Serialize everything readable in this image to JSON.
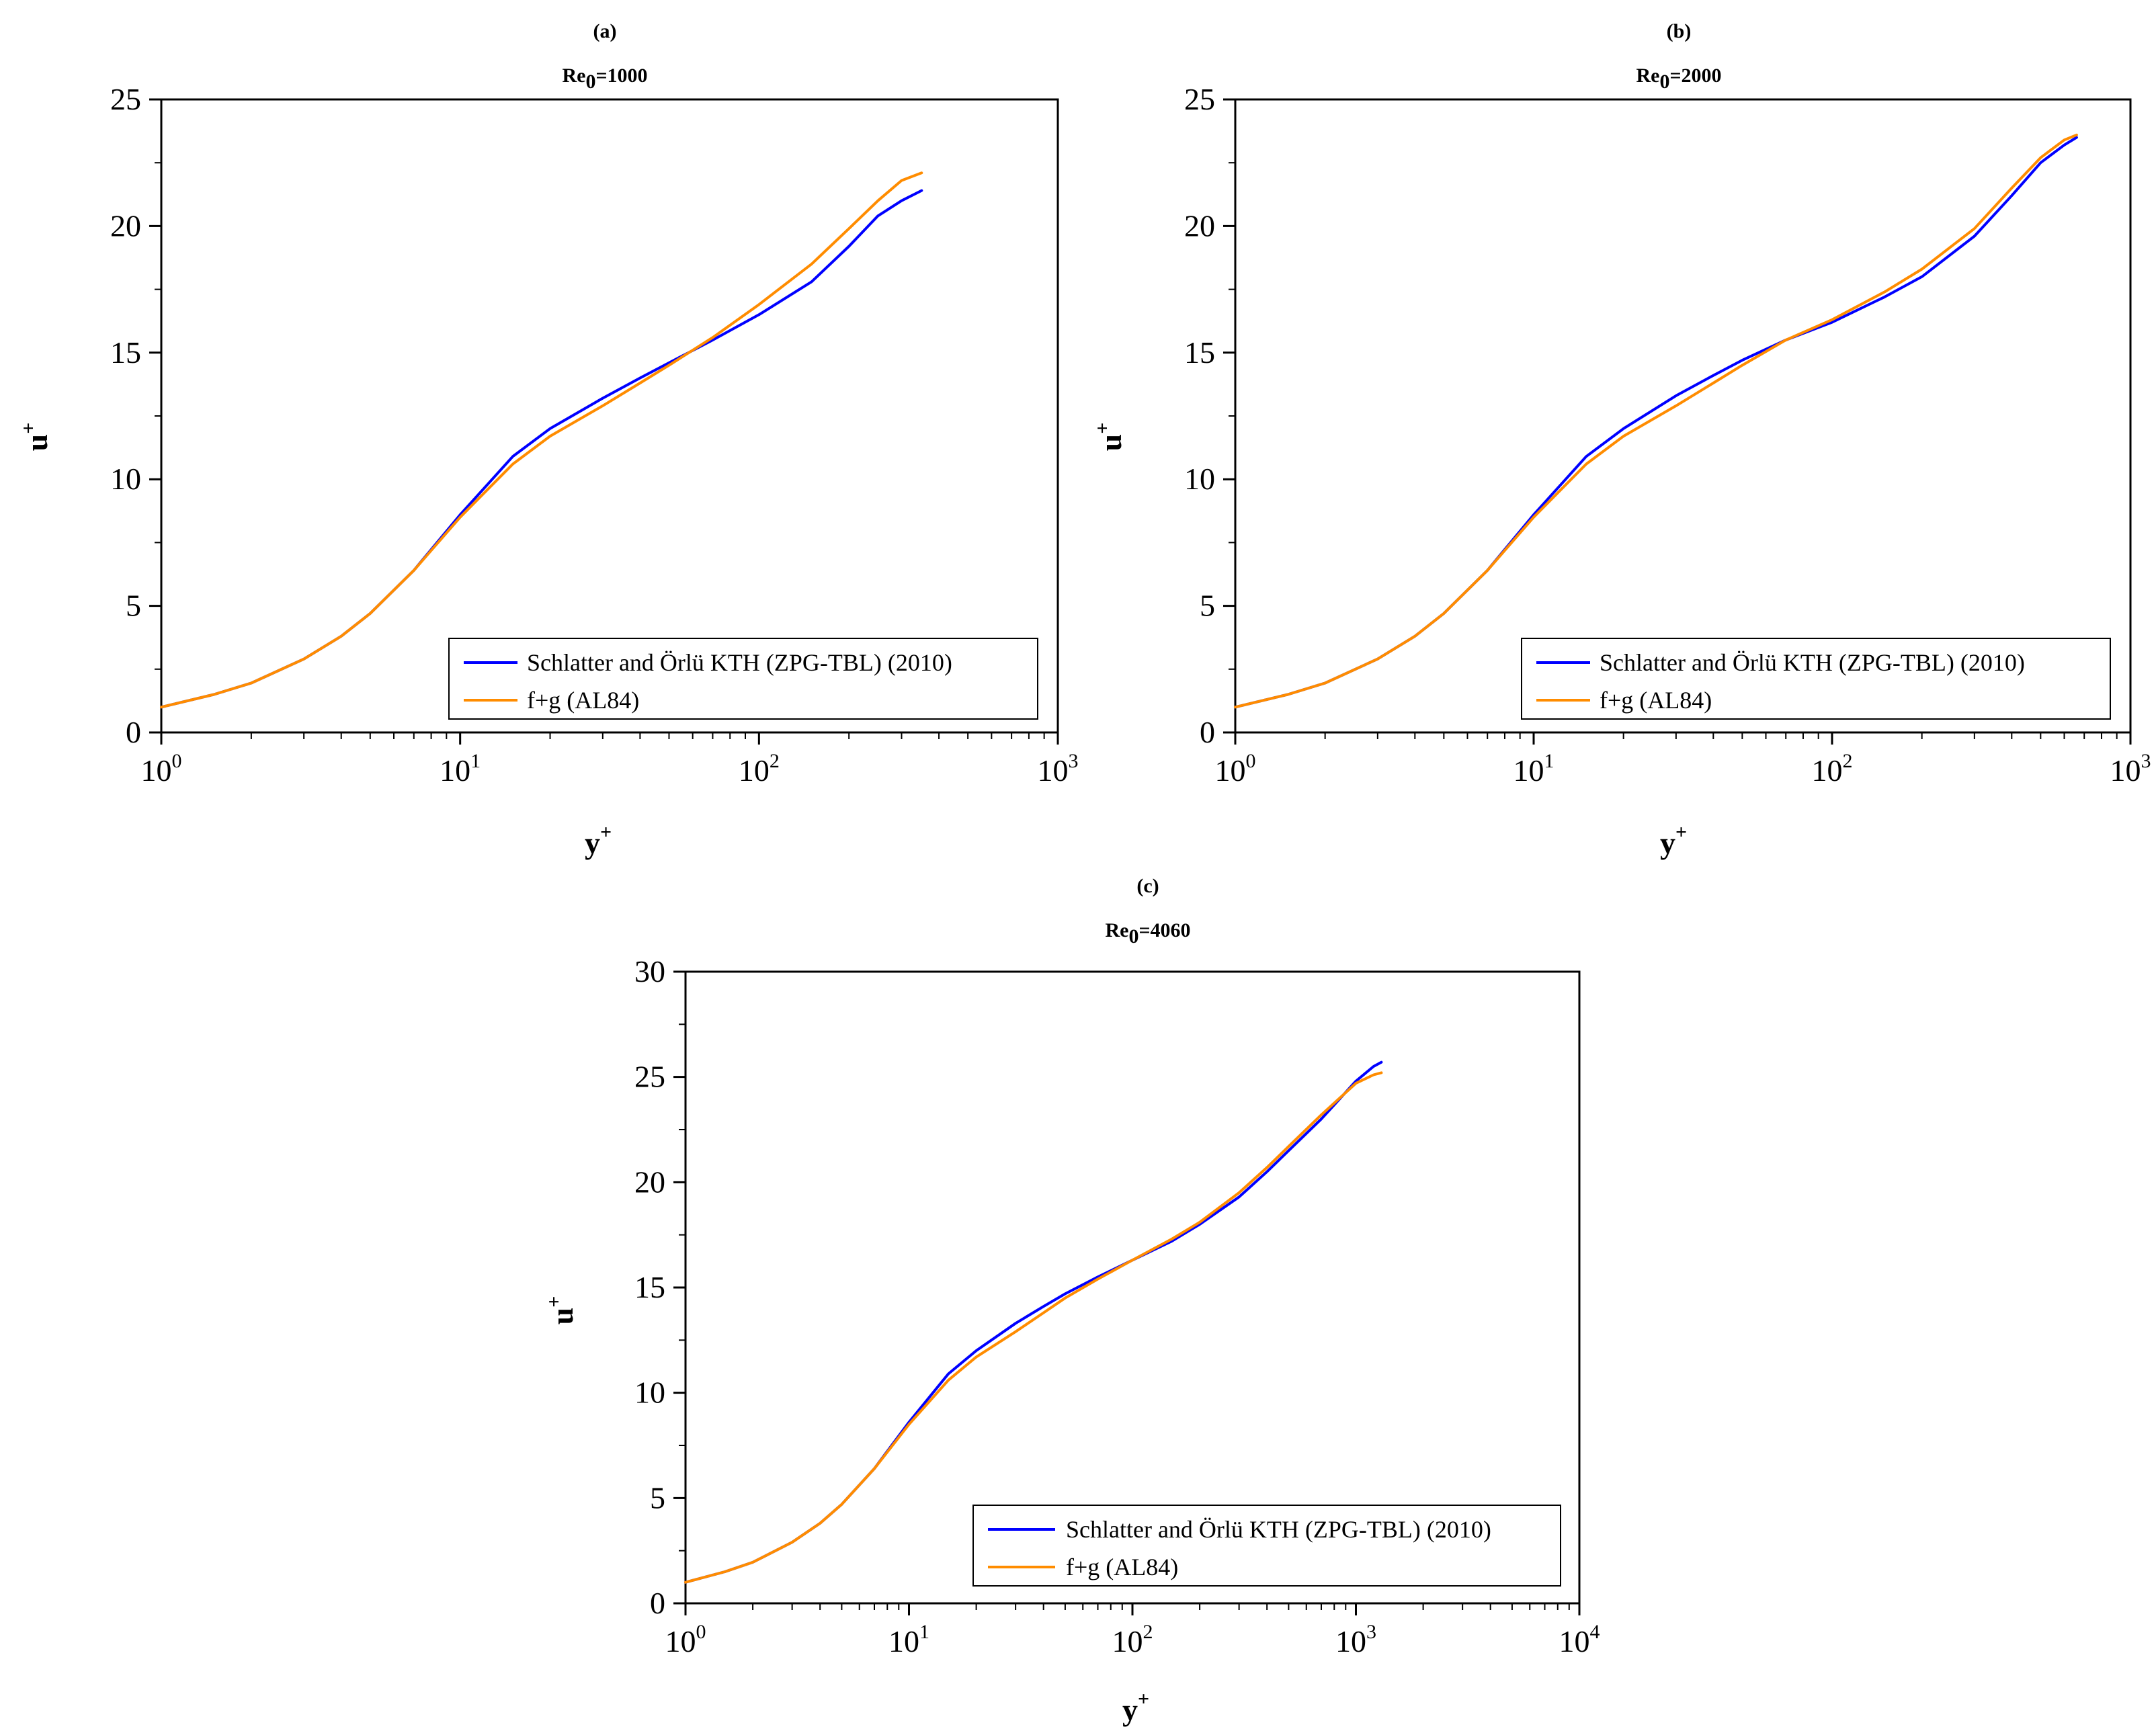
{
  "colors": {
    "dns": "#0000ff",
    "model": "#ff8c00",
    "axis": "#000000"
  },
  "panels": [
    {
      "tag": "(a)",
      "re_label": {
        "base": "Re",
        "sub": "0",
        "value": "=1000"
      },
      "xlabel": {
        "base": "y",
        "sup": "+"
      },
      "ylabel": {
        "base": "u",
        "sup": "+"
      },
      "legend": [
        "Schlatter and Örlü KTH (ZPG-TBL) (2010)",
        "f+g (AL84)"
      ]
    },
    {
      "tag": "(b)",
      "re_label": {
        "base": "Re",
        "sub": "0",
        "value": "=2000"
      },
      "xlabel": {
        "base": "y",
        "sup": "+"
      },
      "ylabel": {
        "base": "u",
        "sup": "+"
      },
      "legend": [
        "Schlatter and Örlü KTH (ZPG-TBL) (2010)",
        "f+g (AL84)"
      ]
    },
    {
      "tag": "(c)",
      "re_label": {
        "base": "Re",
        "sub": "0",
        "value": "=4060"
      },
      "xlabel": {
        "base": "y",
        "sup": "+"
      },
      "ylabel": {
        "base": "u",
        "sup": "+"
      },
      "legend": [
        "Schlatter and Örlü KTH (ZPG-TBL) (2010)",
        "f+g (AL84)"
      ]
    }
  ],
  "chart_data": [
    {
      "type": "line",
      "title": "(a) Re0=1000",
      "xlabel": "y+",
      "ylabel": "u+",
      "xscale": "log",
      "xlim": [
        1,
        1000
      ],
      "ylim": [
        0,
        25
      ],
      "xticks": [
        1,
        10,
        100,
        1000
      ],
      "xtick_labels": [
        {
          "base": "10",
          "exp": "0"
        },
        {
          "base": "10",
          "exp": "1"
        },
        {
          "base": "10",
          "exp": "2"
        },
        {
          "base": "10",
          "exp": "3"
        }
      ],
      "yticks": [
        0,
        5,
        10,
        15,
        20,
        25
      ],
      "ytick_labels": [
        "0",
        "5",
        "10",
        "15",
        "20",
        "25"
      ],
      "legend_position": "bottom-right",
      "series": [
        {
          "name": "Schlatter and Örlü KTH (ZPG-TBL) (2010)",
          "color": "#0000ff",
          "x": [
            1,
            1.5,
            2,
            3,
            4,
            5,
            7,
            10,
            15,
            20,
            30,
            40,
            50,
            70,
            100,
            150,
            200,
            250,
            300,
            350
          ],
          "y": [
            1.0,
            1.5,
            1.95,
            2.9,
            3.8,
            4.7,
            6.4,
            8.6,
            10.9,
            12.0,
            13.2,
            14.0,
            14.6,
            15.5,
            16.5,
            17.8,
            19.2,
            20.4,
            21.0,
            21.4
          ]
        },
        {
          "name": "f+g (AL84)",
          "color": "#ff8c00",
          "x": [
            1,
            1.5,
            2,
            3,
            4,
            5,
            7,
            10,
            15,
            20,
            30,
            40,
            50,
            70,
            100,
            150,
            200,
            250,
            300,
            350
          ],
          "y": [
            1.0,
            1.5,
            1.95,
            2.9,
            3.8,
            4.7,
            6.4,
            8.5,
            10.6,
            11.7,
            12.9,
            13.8,
            14.5,
            15.6,
            16.9,
            18.5,
            19.9,
            21.0,
            21.8,
            22.1
          ]
        }
      ]
    },
    {
      "type": "line",
      "title": "(b) Re0=2000",
      "xlabel": "y+",
      "ylabel": "u+",
      "xscale": "log",
      "xlim": [
        1,
        1000
      ],
      "ylim": [
        0,
        25
      ],
      "xticks": [
        1,
        10,
        100,
        1000
      ],
      "xtick_labels": [
        {
          "base": "10",
          "exp": "0"
        },
        {
          "base": "10",
          "exp": "1"
        },
        {
          "base": "10",
          "exp": "2"
        },
        {
          "base": "10",
          "exp": "3"
        }
      ],
      "yticks": [
        0,
        5,
        10,
        15,
        20,
        25
      ],
      "ytick_labels": [
        "0",
        "5",
        "10",
        "15",
        "20",
        "25"
      ],
      "legend_position": "bottom-right",
      "series": [
        {
          "name": "Schlatter and Örlü KTH (ZPG-TBL) (2010)",
          "color": "#0000ff",
          "x": [
            1,
            1.5,
            2,
            3,
            4,
            5,
            7,
            10,
            15,
            20,
            30,
            40,
            50,
            70,
            100,
            150,
            200,
            300,
            400,
            500,
            600,
            660
          ],
          "y": [
            1.0,
            1.5,
            1.95,
            2.9,
            3.8,
            4.7,
            6.4,
            8.6,
            10.9,
            12.0,
            13.3,
            14.1,
            14.7,
            15.5,
            16.2,
            17.2,
            18.0,
            19.6,
            21.2,
            22.5,
            23.2,
            23.5
          ]
        },
        {
          "name": "f+g (AL84)",
          "color": "#ff8c00",
          "x": [
            1,
            1.5,
            2,
            3,
            4,
            5,
            7,
            10,
            15,
            20,
            30,
            40,
            50,
            70,
            100,
            150,
            200,
            300,
            400,
            500,
            600,
            660
          ],
          "y": [
            1.0,
            1.5,
            1.95,
            2.9,
            3.8,
            4.7,
            6.4,
            8.5,
            10.6,
            11.7,
            12.9,
            13.8,
            14.5,
            15.5,
            16.3,
            17.4,
            18.3,
            19.9,
            21.5,
            22.7,
            23.4,
            23.6
          ]
        }
      ]
    },
    {
      "type": "line",
      "title": "(c) Re0=4060",
      "xlabel": "y+",
      "ylabel": "u+",
      "xscale": "log",
      "xlim": [
        1,
        10000
      ],
      "ylim": [
        0,
        30
      ],
      "xticks": [
        1,
        10,
        100,
        1000,
        10000
      ],
      "xtick_labels": [
        {
          "base": "10",
          "exp": "0"
        },
        {
          "base": "10",
          "exp": "1"
        },
        {
          "base": "10",
          "exp": "2"
        },
        {
          "base": "10",
          "exp": "3"
        },
        {
          "base": "10",
          "exp": "4"
        }
      ],
      "yticks": [
        0,
        5,
        10,
        15,
        20,
        25,
        30
      ],
      "ytick_labels": [
        "0",
        "5",
        "10",
        "15",
        "20",
        "25",
        "30"
      ],
      "legend_position": "bottom-right",
      "series": [
        {
          "name": "Schlatter and Örlü KTH (ZPG-TBL) (2010)",
          "color": "#0000ff",
          "x": [
            1,
            1.5,
            2,
            3,
            4,
            5,
            7,
            10,
            15,
            20,
            30,
            40,
            50,
            70,
            100,
            150,
            200,
            300,
            400,
            500,
            700,
            1000,
            1200,
            1300
          ],
          "y": [
            1.0,
            1.5,
            1.95,
            2.9,
            3.8,
            4.7,
            6.4,
            8.6,
            10.9,
            12.0,
            13.3,
            14.1,
            14.7,
            15.5,
            16.3,
            17.2,
            18.0,
            19.3,
            20.5,
            21.5,
            23.0,
            24.8,
            25.5,
            25.7
          ]
        },
        {
          "name": "f+g (AL84)",
          "color": "#ff8c00",
          "x": [
            1,
            1.5,
            2,
            3,
            4,
            5,
            7,
            10,
            15,
            20,
            30,
            40,
            50,
            70,
            100,
            150,
            200,
            300,
            400,
            500,
            700,
            1000,
            1200,
            1300
          ],
          "y": [
            1.0,
            1.5,
            1.95,
            2.9,
            3.8,
            4.7,
            6.4,
            8.5,
            10.6,
            11.7,
            12.9,
            13.8,
            14.5,
            15.4,
            16.3,
            17.3,
            18.1,
            19.5,
            20.7,
            21.7,
            23.2,
            24.7,
            25.1,
            25.2
          ]
        }
      ]
    }
  ]
}
